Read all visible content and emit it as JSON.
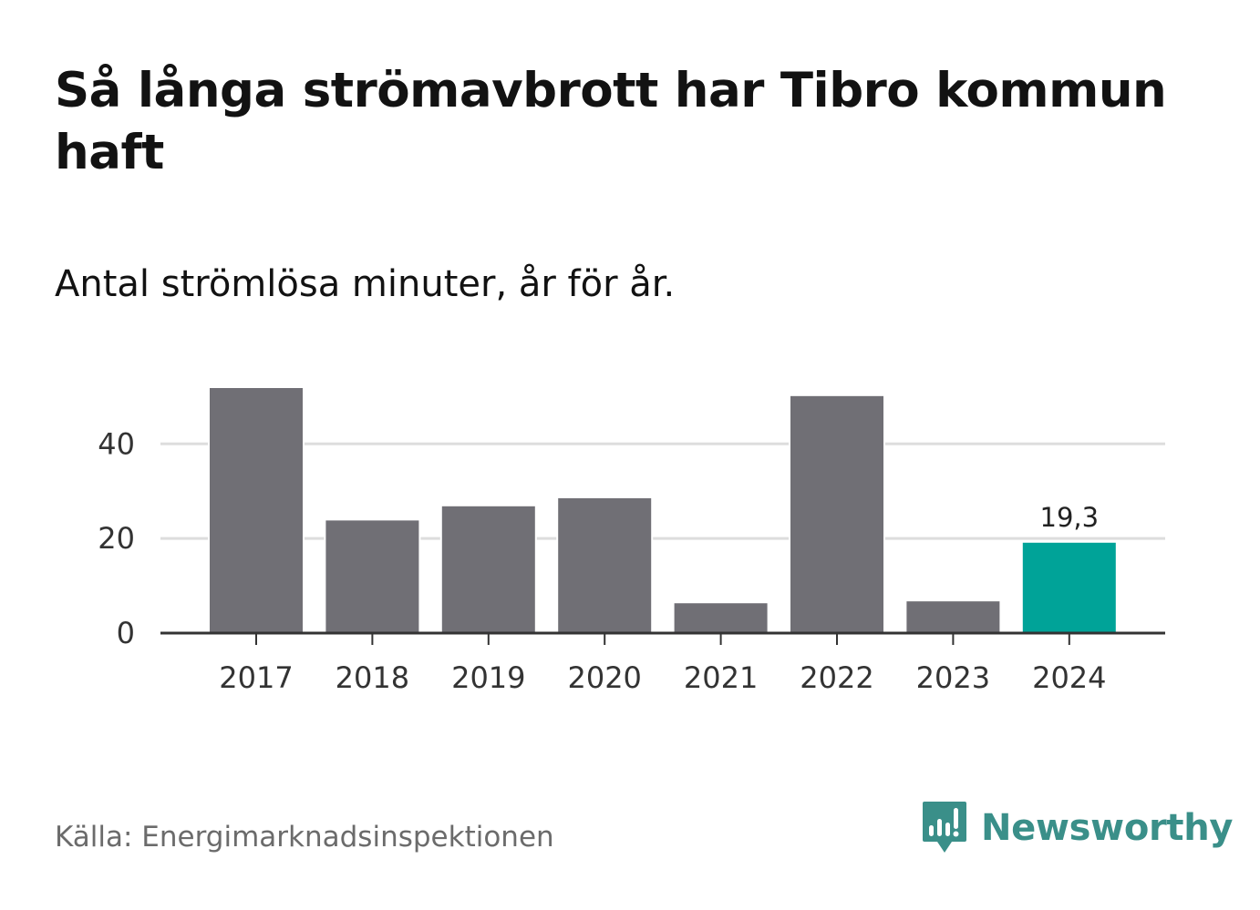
{
  "header": {
    "title": "Så långa strömavbrott har Tibro kommun haft",
    "subtitle": "Antal strömlösa minuter, år för år."
  },
  "footer": {
    "source": "Källa: Energimarknadsinspektionen",
    "brand": "Newsworthy"
  },
  "colors": {
    "bar": "#706f75",
    "highlight": "#00a398",
    "grid": "#dddddd",
    "axis": "#333333",
    "brand": "#3a8f89"
  },
  "chart_data": {
    "type": "bar",
    "title": "Så långa strömavbrott har Tibro kommun haft",
    "subtitle": "Antal strömlösa minuter, år för år.",
    "xlabel": "",
    "ylabel": "",
    "categories": [
      "2017",
      "2018",
      "2019",
      "2020",
      "2021",
      "2022",
      "2023",
      "2024"
    ],
    "values": [
      52.0,
      24.0,
      27.0,
      28.7,
      6.5,
      50.3,
      6.9,
      19.3
    ],
    "highlight_index": 7,
    "data_labels": [
      {
        "index": 7,
        "text": "19,3"
      }
    ],
    "ylim": [
      0,
      52
    ],
    "yticks": [
      0,
      20,
      40
    ],
    "grid": true,
    "legend": "none"
  }
}
